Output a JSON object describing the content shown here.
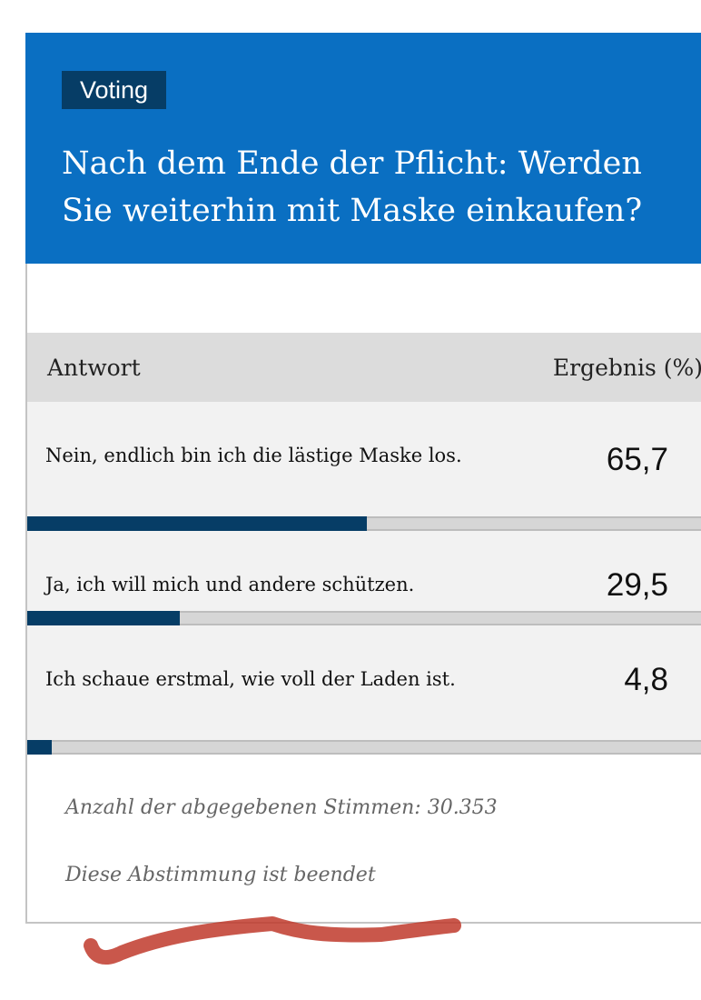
{
  "badge": "Voting",
  "question": "Nach dem Ende der Pflicht: Werden Sie weiterhin mit Maske einkaufen?",
  "table": {
    "col_answer": "Antwort",
    "col_result": "Ergebnis (%)"
  },
  "answers": [
    {
      "text": "Nein, endlich bin ich die lästige Maske los.",
      "percent_label": "65,7",
      "percent": 65.7
    },
    {
      "text": "Ja, ich will mich und andere schützen.",
      "percent_label": "29,5",
      "percent": 29.5
    },
    {
      "text": "Ich schaue erstmal, wie voll der Laden ist.",
      "percent_label": "4,8",
      "percent": 4.8
    }
  ],
  "votes_text": "Anzahl der abgegebenen Stimmen: 30.353",
  "status_text": "Diese Abstimmung ist beendet",
  "colors": {
    "header_bg": "#0a6fc2",
    "badge_bg": "#063d66",
    "bar_fill": "#063d66",
    "annotation_stroke": "#c0392b"
  }
}
